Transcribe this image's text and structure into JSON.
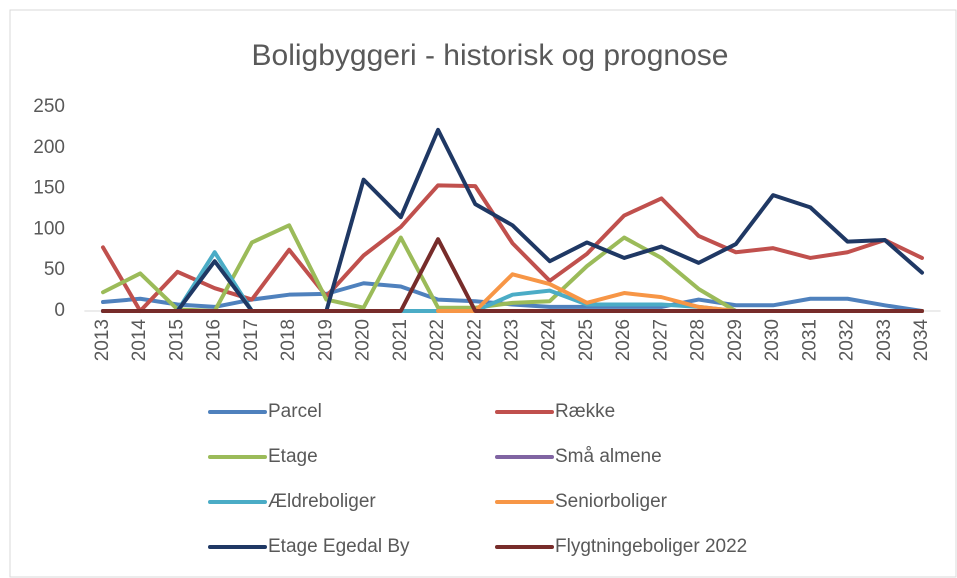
{
  "chart_data": {
    "type": "line",
    "title": "Boligbyggeri - historisk og prognose",
    "categories": [
      "2013",
      "2014",
      "2015",
      "2016",
      "2017",
      "2018",
      "2019",
      "2020",
      "2021",
      "2022",
      "2022",
      "2023",
      "2024",
      "2025",
      "2026",
      "2027",
      "2028",
      "2029",
      "2030",
      "2031",
      "2032",
      "2033",
      "2034"
    ],
    "ylim": [
      0,
      250
    ],
    "yticks": [
      0,
      50,
      100,
      150,
      200,
      250
    ],
    "grid": false,
    "legend": "bottom",
    "series": [
      {
        "name": "Parcel",
        "color": "#4f81bd",
        "values": [
          11,
          15,
          8,
          5,
          14,
          20,
          21,
          34,
          30,
          14,
          12,
          8,
          5,
          5,
          5,
          5,
          14,
          7,
          7,
          15,
          15,
          7,
          0
        ]
      },
      {
        "name": "Række",
        "color": "#c0504d",
        "values": [
          78,
          0,
          48,
          28,
          14,
          75,
          18,
          68,
          103,
          154,
          153,
          83,
          37,
          70,
          117,
          138,
          92,
          72,
          77,
          65,
          72,
          87,
          65
        ]
      },
      {
        "name": "Etage",
        "color": "#9bbb59",
        "values": [
          23,
          46,
          2,
          0,
          84,
          105,
          14,
          4,
          90,
          4,
          4,
          10,
          12,
          55,
          90,
          65,
          27,
          0,
          0,
          0,
          0,
          0,
          0
        ]
      },
      {
        "name": "Små almene",
        "color": "#8064a2",
        "values": [
          0,
          0,
          0,
          0,
          0,
          0,
          0,
          0,
          0,
          0,
          0,
          0,
          0,
          0,
          0,
          0,
          0,
          0,
          0,
          0,
          0,
          0,
          0
        ]
      },
      {
        "name": "Ældreboliger",
        "color": "#4bacc6",
        "values": [
          0,
          0,
          0,
          72,
          0,
          0,
          0,
          0,
          0,
          0,
          0,
          20,
          25,
          8,
          8,
          8,
          5,
          0,
          0,
          0,
          0,
          0,
          0
        ]
      },
      {
        "name": "Seniorboliger",
        "color": "#f79646",
        "values": [
          null,
          null,
          null,
          null,
          null,
          null,
          null,
          null,
          null,
          0,
          0,
          45,
          33,
          10,
          22,
          17,
          5,
          0,
          0,
          0,
          0,
          0,
          0
        ]
      },
      {
        "name": "Etage Egedal By",
        "color": "#1f3864",
        "values": [
          0,
          0,
          0,
          61,
          0,
          0,
          0,
          161,
          115,
          222,
          131,
          105,
          61,
          84,
          65,
          79,
          59,
          82,
          142,
          127,
          85,
          87,
          47
        ]
      },
      {
        "name": "Flygtningeboliger 2022",
        "color": "#772c2a",
        "values": [
          0,
          0,
          0,
          0,
          0,
          0,
          0,
          0,
          0,
          88,
          0,
          0,
          0,
          0,
          0,
          0,
          0,
          0,
          0,
          0,
          0,
          0,
          0
        ]
      }
    ]
  }
}
